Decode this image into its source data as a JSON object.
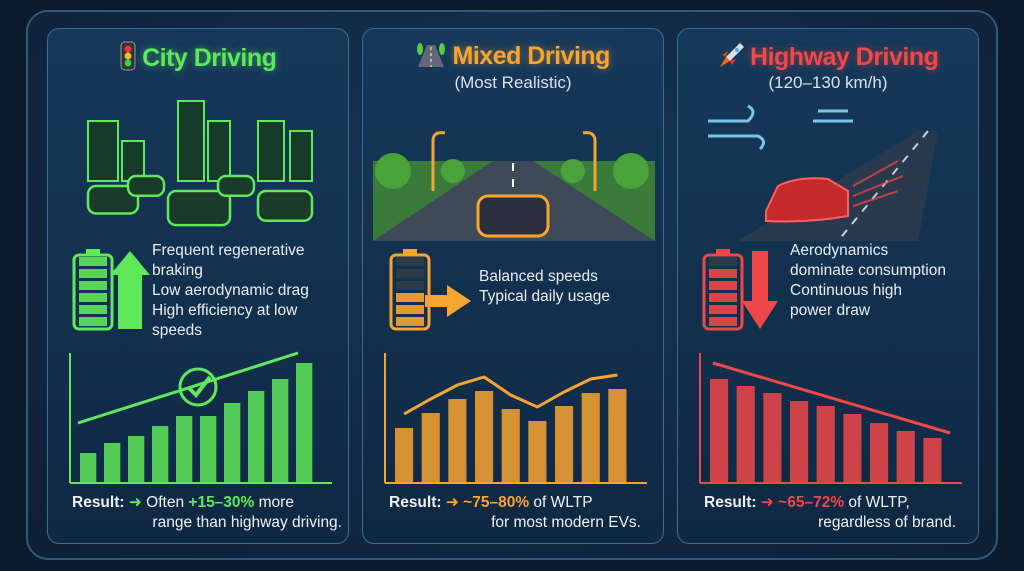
{
  "panels": [
    {
      "title": "City Driving",
      "subtitle": "",
      "icon": "traffic-light-icon",
      "color": "#5ee85a",
      "features": [
        "Frequent regenerative",
        "braking",
        "Low aerodynamic drag",
        "High efficiency at low",
        "speeds"
      ],
      "result": {
        "label": "Result:",
        "prefix": "Often ",
        "highlight": "+15–30%",
        "suffix": " more",
        "line2": "range than highway driving."
      },
      "bars": [
        30,
        40,
        47,
        57,
        67,
        67,
        80,
        92,
        104,
        120
      ],
      "trend": "rising"
    },
    {
      "title": "Mixed Driving",
      "subtitle": "(Most Realistic)",
      "icon": "road-icon",
      "color": "#f7a531",
      "features": [
        "Balanced speeds",
        "Typical daily usage"
      ],
      "result": {
        "label": "Result:",
        "prefix": "",
        "highlight": "~75–80%",
        "suffix": " of WLTP",
        "line2": "for most modern EVs."
      },
      "bars": [
        55,
        70,
        84,
        92,
        74,
        62,
        77,
        90,
        94
      ],
      "trend": "wavy"
    },
    {
      "title": "Highway Driving",
      "subtitle": "(120–130 km/h)",
      "icon": "rocket-icon",
      "color": "#f04848",
      "features": [
        "Aerodynamics",
        "dominate consumption",
        "Continuous high",
        "power draw"
      ],
      "result": {
        "label": "Result:",
        "prefix": "",
        "highlight": "~65–72%",
        "suffix": " of WLTP,",
        "line2": "regardless of brand."
      },
      "bars": [
        104,
        97,
        90,
        82,
        77,
        69,
        60,
        52,
        45
      ],
      "trend": "falling"
    }
  ]
}
